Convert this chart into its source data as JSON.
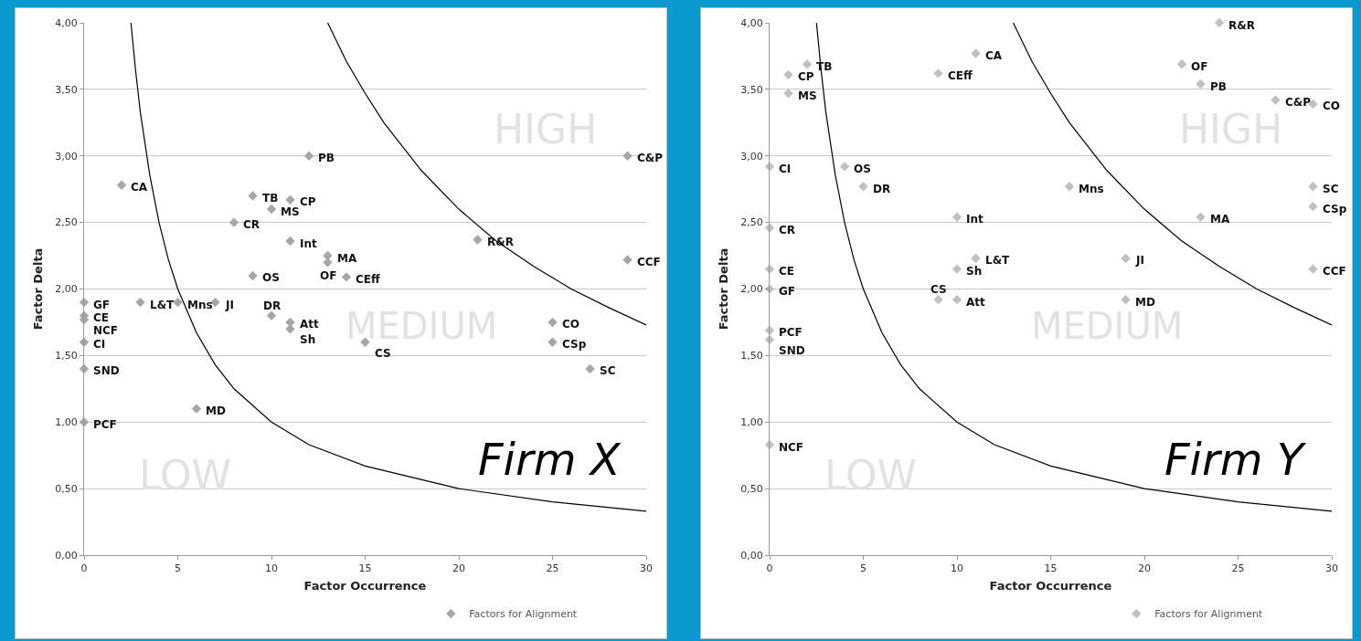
{
  "chart_data": [
    {
      "type": "scatter",
      "xlabel": "Factor Occurrence",
      "ylabel": "Factor Delta",
      "xlim": [
        0,
        30
      ],
      "ylim": [
        0,
        4
      ],
      "xticks": [
        0,
        5,
        10,
        15,
        20,
        25,
        30
      ],
      "yticks": [
        {
          "value": 0,
          "label": "0,00"
        },
        {
          "value": 0.5,
          "label": "0,50"
        },
        {
          "value": 1,
          "label": "1,00"
        },
        {
          "value": 1.5,
          "label": "1,50"
        },
        {
          "value": 2,
          "label": "2,00"
        },
        {
          "value": 2.5,
          "label": "2,50"
        },
        {
          "value": 3,
          "label": "3,00"
        },
        {
          "value": 3.5,
          "label": "3,50"
        },
        {
          "value": 4,
          "label": "4,00"
        }
      ],
      "grid": "y",
      "legend": "bottom",
      "marker": "diamond",
      "series": [
        {
          "name": "Factors for Alignment",
          "color": "#a6a6a6",
          "x": [
            2,
            12,
            9,
            11,
            10,
            8,
            11,
            13,
            13,
            9,
            14,
            21,
            29,
            29,
            0,
            0,
            0,
            0,
            0,
            0,
            3,
            5,
            7,
            10,
            11,
            11,
            15,
            25,
            25,
            27,
            6
          ],
          "values": [
            2.78,
            3.0,
            2.7,
            2.67,
            2.6,
            2.5,
            2.36,
            2.25,
            2.2,
            2.1,
            2.09,
            2.37,
            3.0,
            2.22,
            1.9,
            1.8,
            1.77,
            1.6,
            1.4,
            1.0,
            1.9,
            1.9,
            1.9,
            1.8,
            1.75,
            1.7,
            1.6,
            1.75,
            1.6,
            1.4,
            1.1
          ]
        },
        {
          "type": "line",
          "marker": "none",
          "color": "#000000",
          "x": [
            2.5,
            2.75,
            3,
            3.5,
            4,
            4.5,
            5,
            6,
            7,
            8,
            10,
            12,
            15,
            20,
            25,
            30
          ],
          "values": [
            4.0,
            3.64,
            3.33,
            2.86,
            2.5,
            2.22,
            2.0,
            1.67,
            1.43,
            1.25,
            1.0,
            0.83,
            0.67,
            0.5,
            0.4,
            0.33
          ]
        },
        {
          "type": "line",
          "marker": "none",
          "color": "#000000",
          "x": [
            13,
            14,
            15,
            16,
            18,
            20,
            22,
            24,
            26,
            28,
            30
          ],
          "values": [
            4.0,
            3.71,
            3.47,
            3.25,
            2.89,
            2.6,
            2.36,
            2.17,
            2.0,
            1.86,
            1.73
          ]
        }
      ],
      "annotations": [
        {
          "text": "CA",
          "x": 2,
          "y": 2.78
        },
        {
          "text": "PB",
          "x": 12,
          "y": 3.0
        },
        {
          "text": "TB",
          "x": 9,
          "y": 2.7
        },
        {
          "text": "CP",
          "x": 11,
          "y": 2.67
        },
        {
          "text": "MS",
          "x": 10,
          "y": 2.6
        },
        {
          "text": "CR",
          "x": 8,
          "y": 2.5
        },
        {
          "text": "Int",
          "x": 11,
          "y": 2.36
        },
        {
          "text": "MA",
          "x": 13,
          "y": 2.25
        },
        {
          "text": "OF",
          "x": 13,
          "y": 2.2
        },
        {
          "text": "OS",
          "x": 9,
          "y": 2.1
        },
        {
          "text": "CEff",
          "x": 14,
          "y": 2.09
        },
        {
          "text": "R&R",
          "x": 21,
          "y": 2.37
        },
        {
          "text": "C&P",
          "x": 29,
          "y": 3.0
        },
        {
          "text": "CCF",
          "x": 29,
          "y": 2.22
        },
        {
          "text": "GF",
          "x": 0,
          "y": 1.9
        },
        {
          "text": "CE",
          "x": 0,
          "y": 1.8
        },
        {
          "text": "NCF",
          "x": 0,
          "y": 1.77
        },
        {
          "text": "CI",
          "x": 0,
          "y": 1.6
        },
        {
          "text": "SND",
          "x": 0,
          "y": 1.4
        },
        {
          "text": "PCF",
          "x": 0,
          "y": 1.0
        },
        {
          "text": "L&T",
          "x": 3,
          "y": 1.9
        },
        {
          "text": "Mns",
          "x": 5,
          "y": 1.9
        },
        {
          "text": "JI",
          "x": 7,
          "y": 1.9
        },
        {
          "text": "DR",
          "x": 10,
          "y": 1.8
        },
        {
          "text": "Att",
          "x": 11,
          "y": 1.75
        },
        {
          "text": "Sh",
          "x": 11,
          "y": 1.7
        },
        {
          "text": "CS",
          "x": 15,
          "y": 1.6
        },
        {
          "text": "CO",
          "x": 25,
          "y": 1.75
        },
        {
          "text": "CSp",
          "x": 25,
          "y": 1.6
        },
        {
          "text": "SC",
          "x": 27,
          "y": 1.4
        },
        {
          "text": "MD",
          "x": 6,
          "y": 1.1
        },
        "HIGH",
        "MEDIUM",
        "LOW",
        "Firm X"
      ]
    },
    {
      "type": "scatter",
      "xlabel": "Factor Occurrence",
      "ylabel": "Factor Delta",
      "xlim": [
        0,
        30
      ],
      "ylim": [
        0,
        4
      ],
      "xticks": [
        0,
        5,
        10,
        15,
        20,
        25,
        30
      ],
      "yticks": [
        {
          "value": 0,
          "label": "0,00"
        },
        {
          "value": 0.5,
          "label": "0,50"
        },
        {
          "value": 1,
          "label": "1,00"
        },
        {
          "value": 1.5,
          "label": "1,50"
        },
        {
          "value": 2,
          "label": "2,00"
        },
        {
          "value": 2.5,
          "label": "2,50"
        },
        {
          "value": 3,
          "label": "3,00"
        },
        {
          "value": 3.5,
          "label": "3,50"
        },
        {
          "value": 4,
          "label": "4,00"
        }
      ],
      "grid": "y",
      "legend": "bottom",
      "marker": "diamond",
      "series": [
        {
          "name": "Factors for Alignment",
          "color": "#c0c0c0",
          "x": [
            1,
            1,
            2,
            9,
            11,
            24,
            22,
            23,
            27,
            29,
            0,
            4,
            5,
            16,
            10,
            23,
            29,
            29,
            0,
            0,
            0,
            10,
            11,
            19,
            19,
            9,
            10,
            29,
            0,
            0,
            0
          ],
          "values": [
            3.61,
            3.47,
            3.69,
            3.62,
            3.77,
            4.0,
            3.69,
            3.54,
            3.42,
            3.39,
            2.92,
            2.92,
            2.77,
            2.77,
            2.54,
            2.54,
            2.77,
            2.62,
            2.46,
            2.15,
            2.0,
            2.15,
            2.23,
            2.23,
            1.92,
            1.92,
            1.92,
            2.15,
            1.69,
            1.62,
            0.83
          ]
        },
        {
          "type": "line",
          "marker": "none",
          "color": "#000000",
          "x": [
            2.5,
            2.75,
            3,
            3.5,
            4,
            4.5,
            5,
            6,
            7,
            8,
            10,
            12,
            15,
            20,
            25,
            30
          ],
          "values": [
            4.0,
            3.64,
            3.33,
            2.86,
            2.5,
            2.22,
            2.0,
            1.67,
            1.43,
            1.25,
            1.0,
            0.83,
            0.67,
            0.5,
            0.4,
            0.33
          ]
        },
        {
          "type": "line",
          "marker": "none",
          "color": "#000000",
          "x": [
            13,
            14,
            15,
            16,
            18,
            20,
            22,
            24,
            26,
            28,
            30
          ],
          "values": [
            4.0,
            3.71,
            3.47,
            3.25,
            2.89,
            2.6,
            2.36,
            2.17,
            2.0,
            1.86,
            1.73
          ]
        }
      ],
      "annotations": [
        {
          "text": "CP",
          "x": 1,
          "y": 3.61
        },
        {
          "text": "MS",
          "x": 1,
          "y": 3.47
        },
        {
          "text": "TB",
          "x": 2,
          "y": 3.69
        },
        {
          "text": "CEff",
          "x": 9,
          "y": 3.62
        },
        {
          "text": "CA",
          "x": 11,
          "y": 3.77
        },
        {
          "text": "R&R",
          "x": 24,
          "y": 4.0
        },
        {
          "text": "OF",
          "x": 22,
          "y": 3.69
        },
        {
          "text": "PB",
          "x": 23,
          "y": 3.54
        },
        {
          "text": "C&P",
          "x": 27,
          "y": 3.42
        },
        {
          "text": "CO",
          "x": 29,
          "y": 3.39
        },
        {
          "text": "CI",
          "x": 0,
          "y": 2.92
        },
        {
          "text": "OS",
          "x": 4,
          "y": 2.92
        },
        {
          "text": "DR",
          "x": 5,
          "y": 2.77
        },
        {
          "text": "Mns",
          "x": 16,
          "y": 2.77
        },
        {
          "text": "Int",
          "x": 10,
          "y": 2.54
        },
        {
          "text": "MA",
          "x": 23,
          "y": 2.54
        },
        {
          "text": "SC",
          "x": 29,
          "y": 2.77
        },
        {
          "text": "CSp",
          "x": 29,
          "y": 2.62
        },
        {
          "text": "CR",
          "x": 0,
          "y": 2.46
        },
        {
          "text": "CE",
          "x": 0,
          "y": 2.15
        },
        {
          "text": "GF",
          "x": 0,
          "y": 2.0
        },
        {
          "text": "Sh",
          "x": 10,
          "y": 2.15
        },
        {
          "text": "L&T",
          "x": 11,
          "y": 2.23
        },
        {
          "text": "JI",
          "x": 19,
          "y": 2.23
        },
        {
          "text": "MD",
          "x": 19,
          "y": 1.92
        },
        {
          "text": "CS",
          "x": 9,
          "y": 1.92
        },
        {
          "text": "Att",
          "x": 10,
          "y": 1.92
        },
        {
          "text": "CCF",
          "x": 29,
          "y": 2.15
        },
        {
          "text": "PCF",
          "x": 0,
          "y": 1.69
        },
        {
          "text": "SND",
          "x": 0,
          "y": 1.62
        },
        {
          "text": "NCF",
          "x": 0,
          "y": 0.83
        },
        "HIGH",
        "MEDIUM",
        "LOW",
        "Firm Y"
      ]
    }
  ]
}
